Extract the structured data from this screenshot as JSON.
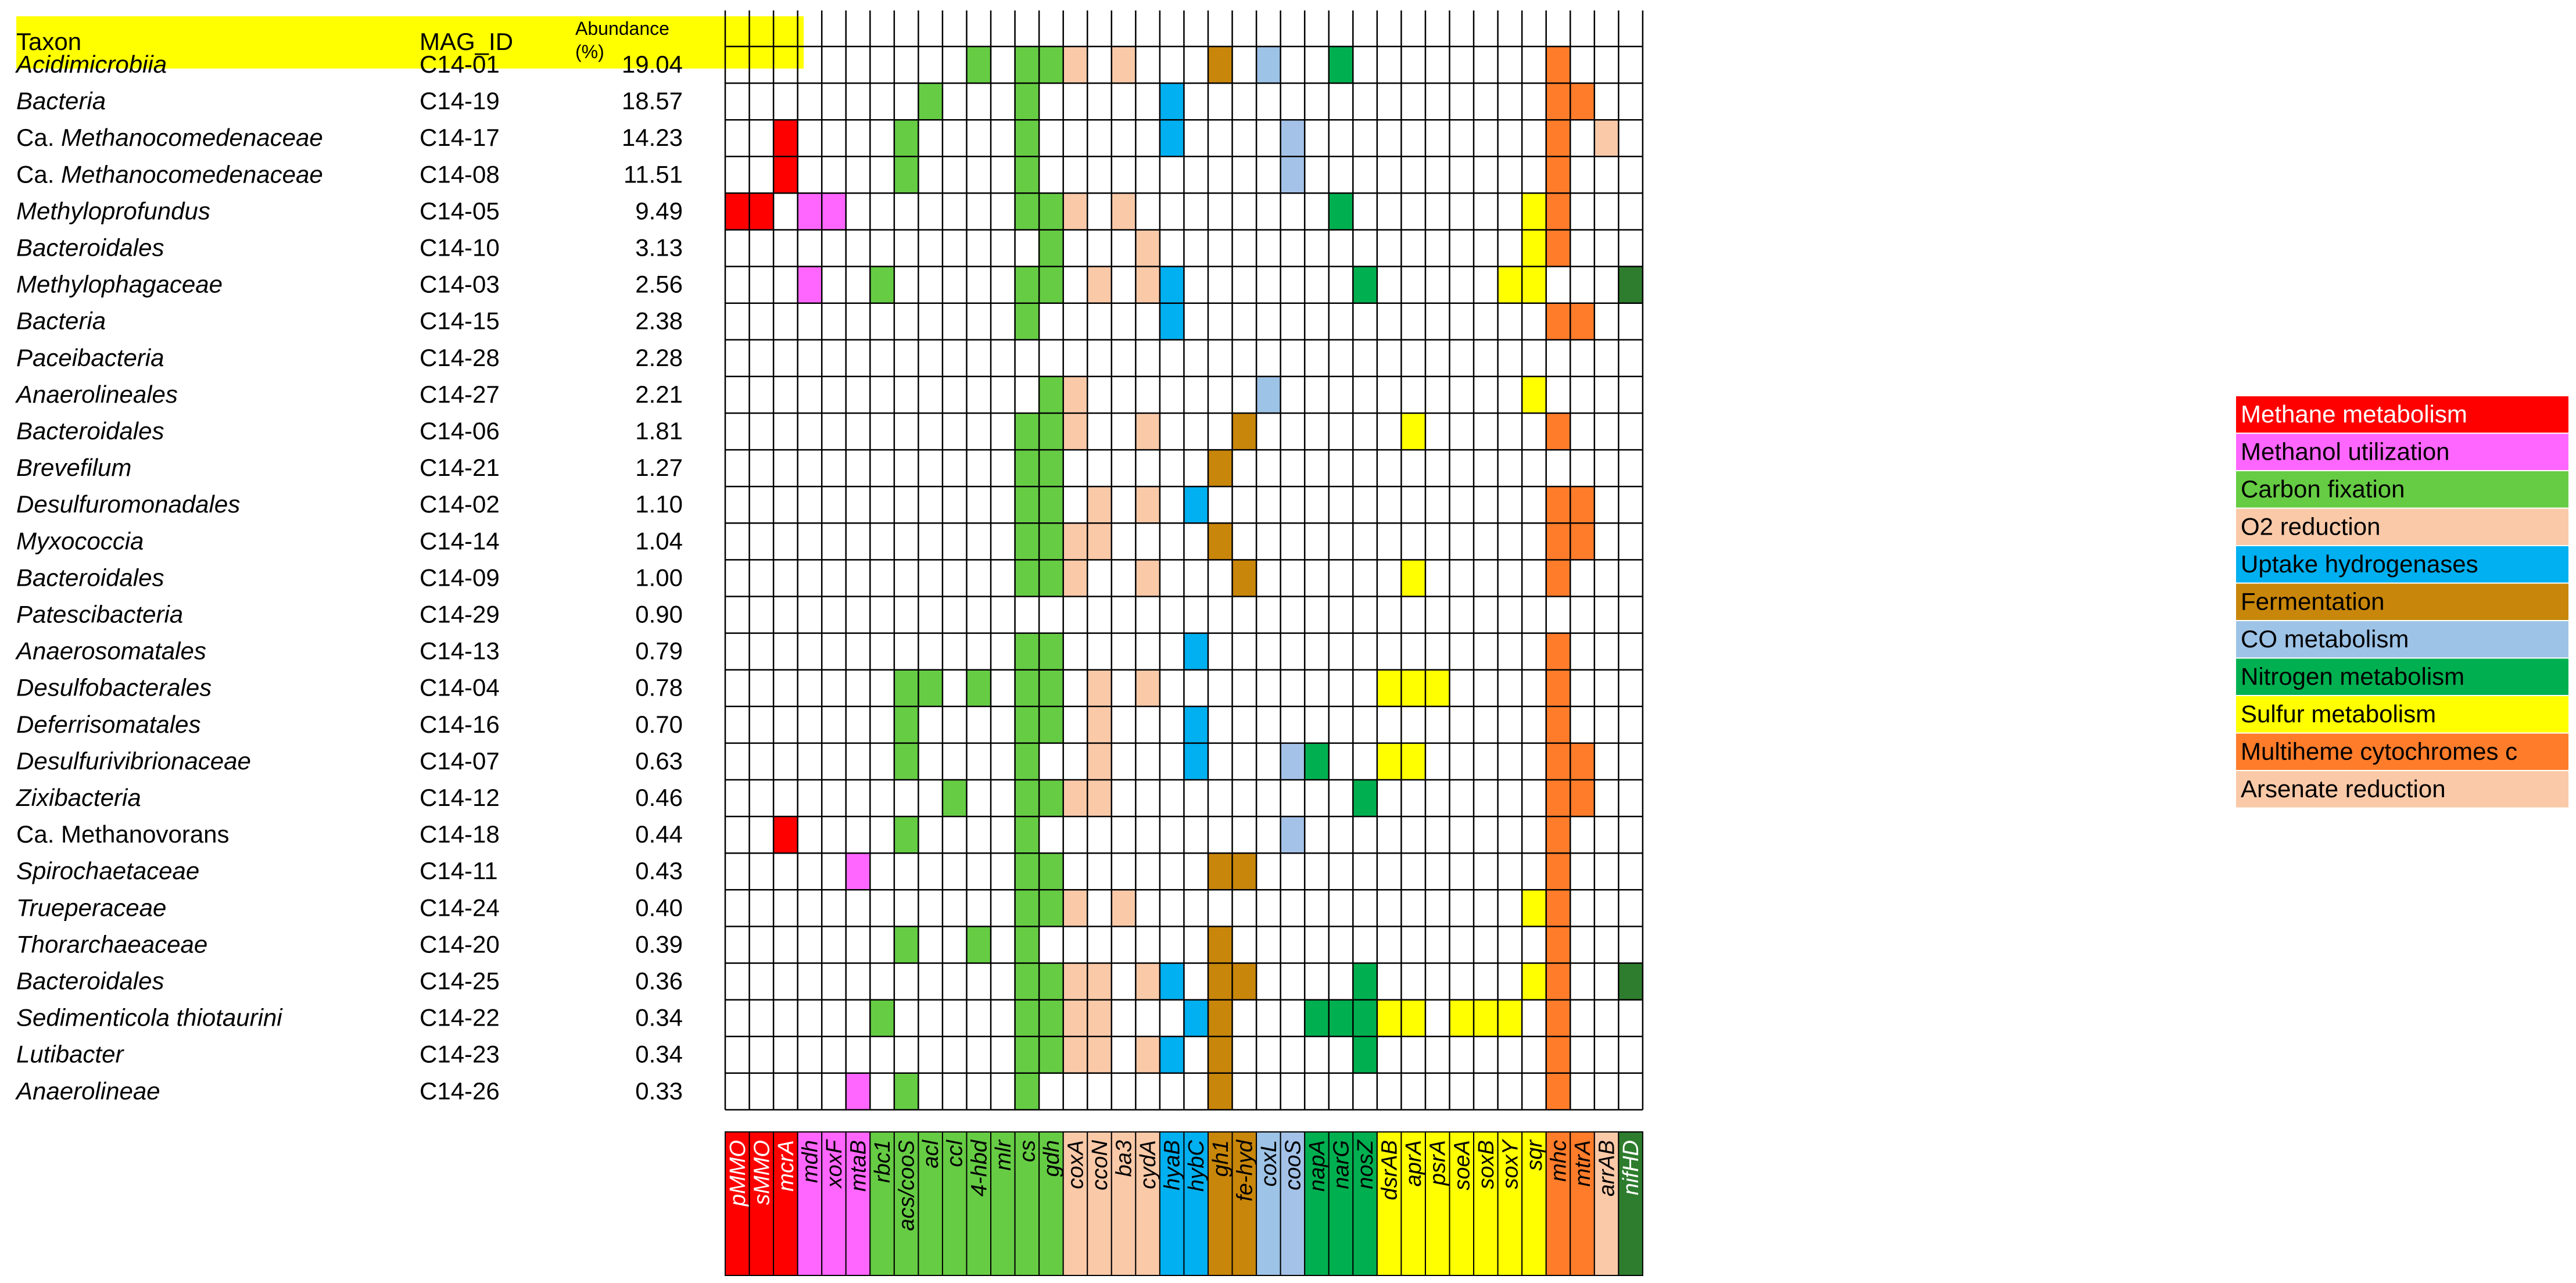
{
  "chart_data": {
    "type": "heatmap",
    "headers": {
      "taxon": "Taxon",
      "mag_id": "MAG_ID",
      "abundance": "Abundance\n(%)"
    },
    "genes": [
      "pMMO",
      "sMMO",
      "mcrA",
      "mdh",
      "xoxF",
      "mtaB",
      "rbc1",
      "acs/cooS",
      "acl",
      "ccl",
      "4-hbd",
      "mlr",
      "cs",
      "gdh",
      "coxA",
      "ccoN",
      "ba3",
      "cydA",
      "hyaB",
      "hybC",
      "gh1",
      "fe-hyd",
      "coxL",
      "cooS",
      "napA",
      "narG",
      "nosZ",
      "dsrAB",
      "aprA",
      "psrA",
      "soeA",
      "soxB",
      "soxY",
      "sqr",
      "mhc",
      "mtrA",
      "arrAB",
      "nifHD"
    ],
    "gene_categories": [
      "meth",
      "meth",
      "meth",
      "mol",
      "mol",
      "mol",
      "cf",
      "cf",
      "cf",
      "cf",
      "cf",
      "cf",
      "cf",
      "cf",
      "o2",
      "o2",
      "o2",
      "o2",
      "hyd",
      "hyd",
      "fer",
      "fer",
      "co",
      "co",
      "nit",
      "nit",
      "nit",
      "sul",
      "sul",
      "sul",
      "sul",
      "sul",
      "sul",
      "sul",
      "mhc",
      "mhc",
      "ars",
      "nifhd"
    ],
    "rows": [
      {
        "taxon": "Acidimicrobiia",
        "italic": true,
        "mag": "C14-01",
        "abundance": "19.04",
        "genes": [
          "4-hbd",
          "cs",
          "gdh",
          "coxA",
          "ba3",
          "gh1",
          "coxL",
          "narG",
          "mhc"
        ]
      },
      {
        "taxon": "Bacteria",
        "italic": true,
        "mag": "C14-19",
        "abundance": "18.57",
        "genes": [
          "acl",
          "cs",
          "hyaB",
          "mhc",
          "mtrA"
        ]
      },
      {
        "taxon": "Ca. Methanocomedenaceae",
        "prefix": "Ca.",
        "italic": true,
        "mag": "C14-17",
        "abundance": "14.23",
        "genes": [
          "mcrA",
          "acs/cooS",
          "cs",
          "hyaB",
          "cooS",
          "mhc",
          "arrAB"
        ]
      },
      {
        "taxon": "Ca. Methanocomedenaceae",
        "prefix": "Ca.",
        "italic": true,
        "mag": "C14-08",
        "abundance": "11.51",
        "genes": [
          "mcrA",
          "acs/cooS",
          "cs",
          "cooS",
          "mhc"
        ]
      },
      {
        "taxon": "Methyloprofundus",
        "italic": true,
        "mag": "C14-05",
        "abundance": "9.49",
        "genes": [
          "pMMO",
          "sMMO",
          "mdh",
          "xoxF",
          "cs",
          "gdh",
          "coxA",
          "ba3",
          "narG",
          "sqr",
          "mhc"
        ]
      },
      {
        "taxon": "Bacteroidales",
        "italic": true,
        "mag": "C14-10",
        "abundance": "3.13",
        "genes": [
          "gdh",
          "cydA",
          "sqr",
          "mhc"
        ]
      },
      {
        "taxon": "Methylophagaceae",
        "italic": true,
        "mag": "C14-03",
        "abundance": "2.56",
        "genes": [
          "mdh",
          "rbc1",
          "cs",
          "gdh",
          "ccoN",
          "cydA",
          "hyaB",
          "nosZ",
          "soxY",
          "sqr",
          "nifHD"
        ]
      },
      {
        "taxon": "Bacteria",
        "italic": true,
        "mag": "C14-15",
        "abundance": "2.38",
        "genes": [
          "cs",
          "hyaB",
          "mhc",
          "mtrA"
        ]
      },
      {
        "taxon": "Paceibacteria",
        "italic": true,
        "mag": "C14-28",
        "abundance": "2.28",
        "genes": []
      },
      {
        "taxon": "Anaerolineales",
        "italic": true,
        "mag": "C14-27",
        "abundance": "2.21",
        "genes": [
          "gdh",
          "coxA",
          "coxL",
          "sqr"
        ]
      },
      {
        "taxon": "Bacteroidales",
        "italic": true,
        "mag": "C14-06",
        "abundance": "1.81",
        "genes": [
          "cs",
          "gdh",
          "coxA",
          "cydA",
          "fe-hyd",
          "aprA",
          "mhc"
        ]
      },
      {
        "taxon": "Brevefilum",
        "italic": true,
        "mag": "C14-21",
        "abundance": "1.27",
        "genes": [
          "cs",
          "gdh",
          "gh1"
        ]
      },
      {
        "taxon": "Desulfuromonadales",
        "italic": true,
        "mag": "C14-02",
        "abundance": "1.10",
        "genes": [
          "cs",
          "gdh",
          "ccoN",
          "cydA",
          "hybC",
          "mhc",
          "mtrA"
        ]
      },
      {
        "taxon": "Myxococcia",
        "italic": true,
        "mag": "C14-14",
        "abundance": "1.04",
        "genes": [
          "cs",
          "gdh",
          "coxA",
          "ccoN",
          "gh1",
          "mhc",
          "mtrA"
        ]
      },
      {
        "taxon": "Bacteroidales",
        "italic": true,
        "mag": "C14-09",
        "abundance": "1.00",
        "genes": [
          "cs",
          "gdh",
          "coxA",
          "cydA",
          "fe-hyd",
          "aprA",
          "mhc"
        ]
      },
      {
        "taxon": "Patescibacteria",
        "italic": true,
        "mag": "C14-29",
        "abundance": "0.90",
        "genes": []
      },
      {
        "taxon": "Anaerosomatales",
        "italic": true,
        "mag": "C14-13",
        "abundance": "0.79",
        "genes": [
          "cs",
          "gdh",
          "hybC",
          "mhc"
        ]
      },
      {
        "taxon": "Desulfobacterales",
        "italic": true,
        "mag": "C14-04",
        "abundance": "0.78",
        "genes": [
          "acs/cooS",
          "acl",
          "4-hbd",
          "cs",
          "gdh",
          "ccoN",
          "cydA",
          "dsrAB",
          "aprA",
          "psrA",
          "mhc"
        ]
      },
      {
        "taxon": "Deferrisomatales",
        "italic": true,
        "mag": "C14-16",
        "abundance": "0.70",
        "genes": [
          "acs/cooS",
          "cs",
          "gdh",
          "ccoN",
          "hybC",
          "mhc"
        ]
      },
      {
        "taxon": "Desulfurivibrionaceae",
        "italic": true,
        "mag": "C14-07",
        "abundance": "0.63",
        "genes": [
          "acs/cooS",
          "cs",
          "ccoN",
          "hybC",
          "cooS",
          "napA",
          "dsrAB",
          "aprA",
          "mhc",
          "mtrA"
        ]
      },
      {
        "taxon": "Zixibacteria",
        "italic": true,
        "mag": "C14-12",
        "abundance": "0.46",
        "genes": [
          "ccl",
          "cs",
          "gdh",
          "coxA",
          "ccoN",
          "nosZ",
          "mhc",
          "mtrA"
        ]
      },
      {
        "taxon": "Ca. Methanovorans",
        "italic": false,
        "mag": "C14-18",
        "abundance": "0.44",
        "genes": [
          "mcrA",
          "acs/cooS",
          "cs",
          "cooS",
          "mhc"
        ]
      },
      {
        "taxon": "Spirochaetaceae",
        "italic": true,
        "mag": "C14-11",
        "abundance": "0.43",
        "genes": [
          "mtaB",
          "cs",
          "gdh",
          "gh1",
          "fe-hyd",
          "mhc"
        ]
      },
      {
        "taxon": "Trueperaceae",
        "italic": true,
        "mag": "C14-24",
        "abundance": "0.40",
        "genes": [
          "cs",
          "gdh",
          "coxA",
          "ba3",
          "sqr",
          "mhc"
        ]
      },
      {
        "taxon": "Thorarchaeaceae",
        "italic": true,
        "mag": "C14-20",
        "abundance": "0.39",
        "genes": [
          "acs/cooS",
          "4-hbd",
          "cs",
          "gh1",
          "mhc"
        ]
      },
      {
        "taxon": "Bacteroidales",
        "italic": true,
        "mag": "C14-25",
        "abundance": "0.36",
        "genes": [
          "cs",
          "gdh",
          "coxA",
          "ccoN",
          "cydA",
          "hyaB",
          "gh1",
          "fe-hyd",
          "nosZ",
          "sqr",
          "mhc",
          "nifHD"
        ]
      },
      {
        "taxon": "Sedimenticola thiotaurini",
        "italic": true,
        "mag": "C14-22",
        "abundance": "0.34",
        "genes": [
          "rbc1",
          "cs",
          "gdh",
          "coxA",
          "ccoN",
          "hybC",
          "gh1",
          "napA",
          "narG",
          "nosZ",
          "dsrAB",
          "aprA",
          "soeA",
          "soxB",
          "soxY",
          "mhc"
        ]
      },
      {
        "taxon": "Lutibacter",
        "italic": true,
        "mag": "C14-23",
        "abundance": "0.34",
        "genes": [
          "cs",
          "gdh",
          "coxA",
          "ccoN",
          "cydA",
          "hyaB",
          "gh1",
          "nosZ",
          "mhc"
        ]
      },
      {
        "taxon": "Anaerolineae",
        "italic": true,
        "mag": "C14-26",
        "abundance": "0.33",
        "genes": [
          "mtaB",
          "acs/cooS",
          "cs",
          "gh1",
          "mhc"
        ]
      }
    ],
    "legend": [
      {
        "key": "meth",
        "label": "Methane  metabolism",
        "color": "#ff0000",
        "text_color": "#ffffff"
      },
      {
        "key": "mol",
        "label": "Methanol  utilization",
        "color": "#ff66ff",
        "text_color": "#000000"
      },
      {
        "key": "cf",
        "label": "Carbon fixation",
        "color": "#66cc44",
        "text_color": "#000000"
      },
      {
        "key": "o2",
        "label": "O2 reduction",
        "color": "#fac9a8",
        "text_color": "#000000"
      },
      {
        "key": "hyd",
        "label": "Uptake  hydrogenases",
        "color": "#00b0f0",
        "text_color": "#000000"
      },
      {
        "key": "fer",
        "label": "Fermentation",
        "color": "#c8860a",
        "text_color": "#000000"
      },
      {
        "key": "co",
        "label": "CO metabolism",
        "color": "#9dc3e6",
        "text_color": "#000000"
      },
      {
        "key": "nit",
        "label": "Nitrogen metabolism",
        "color": "#00b050",
        "text_color": "#000000"
      },
      {
        "key": "sul",
        "label": "Sulfur metabolism",
        "color": "#ffff00",
        "text_color": "#000000"
      },
      {
        "key": "mhc",
        "label": "Multiheme  cytochromes c",
        "color": "#ff7c2a",
        "text_color": "#000000"
      },
      {
        "key": "ars",
        "label": "Arsenate  reduction",
        "color": "#fac9a8",
        "text_color": "#000000"
      }
    ],
    "category_colors": {
      "meth": "#ff0000",
      "mol": "#ff66ff",
      "cf": "#66cc44",
      "o2": "#fac9a8",
      "hyd": "#00b0f0",
      "fer": "#c8860a",
      "co": "#9dc3e6",
      "nit": "#00b050",
      "sul": "#ffff00",
      "mhc": "#ff7c2a",
      "ars": "#fac9a8",
      "nifhd": "#2e7d2e"
    },
    "cell_color_overrides": {
      "cooS": "#a4c2e8",
      "nifHD": "#2e7d2e",
      "arrAB": "#fac9a8"
    },
    "header_band_color": "#ffff00"
  }
}
